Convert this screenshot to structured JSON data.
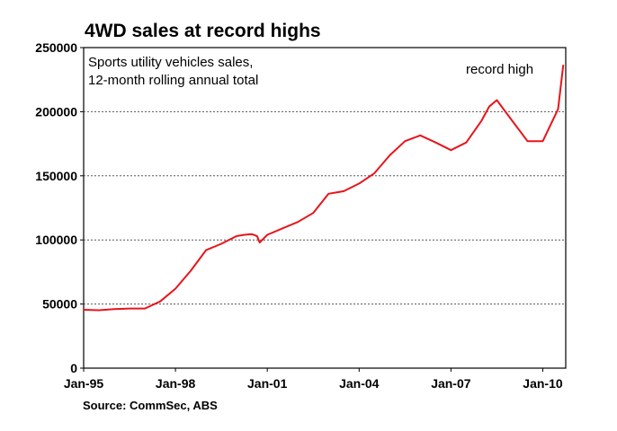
{
  "chart_data": {
    "type": "line",
    "title": "4WD sales at record highs",
    "subtitle_lines": [
      "Sports utility vehicles sales,",
      "12-month rolling annual total"
    ],
    "annotation": "record high",
    "source": "Source: CommSec, ABS",
    "ylim": [
      0,
      250000
    ],
    "y_ticks": [
      {
        "value": 0,
        "label": "0"
      },
      {
        "value": 50000,
        "label": "50000"
      },
      {
        "value": 100000,
        "label": "100000"
      },
      {
        "value": 150000,
        "label": "150000"
      },
      {
        "value": 200000,
        "label": "200000"
      },
      {
        "value": 250000,
        "label": "250000"
      }
    ],
    "x_ticks": [
      {
        "value": "1995-01",
        "label": "Jan-95"
      },
      {
        "value": "1998-01",
        "label": "Jan-98"
      },
      {
        "value": "2001-01",
        "label": "Jan-01"
      },
      {
        "value": "2004-01",
        "label": "Jan-04"
      },
      {
        "value": "2007-01",
        "label": "Jan-07"
      },
      {
        "value": "2010-01",
        "label": "Jan-10"
      }
    ],
    "xlim": [
      "1995-01",
      "2010-10"
    ],
    "grid": "horizontal dotted",
    "line_color": "#e8141b",
    "series": [
      {
        "x": [
          "1995-01",
          "1995-07",
          "1996-01",
          "1996-07",
          "1997-01",
          "1997-07",
          "1998-01",
          "1998-07",
          "1999-01",
          "1999-07",
          "2000-01",
          "2000-04",
          "2000-07",
          "2000-09",
          "2000-10",
          "2001-01",
          "2001-07",
          "2002-01",
          "2002-07",
          "2003-01",
          "2003-07",
          "2004-01",
          "2004-07",
          "2005-01",
          "2005-07",
          "2006-01",
          "2006-07",
          "2007-01",
          "2007-07",
          "2008-01",
          "2008-04",
          "2008-07",
          "2009-01",
          "2009-07",
          "2010-01",
          "2010-07",
          "2010-09"
        ],
        "values": [
          45500,
          45200,
          46000,
          46500,
          46500,
          52000,
          62000,
          76000,
          92000,
          97000,
          103000,
          104000,
          104500,
          103000,
          98000,
          104000,
          109000,
          114000,
          121000,
          136000,
          138000,
          144000,
          152000,
          166000,
          177000,
          181500,
          176000,
          170000,
          176000,
          193000,
          204000,
          209000,
          193000,
          177000,
          177000,
          202000,
          236000
        ]
      }
    ]
  }
}
